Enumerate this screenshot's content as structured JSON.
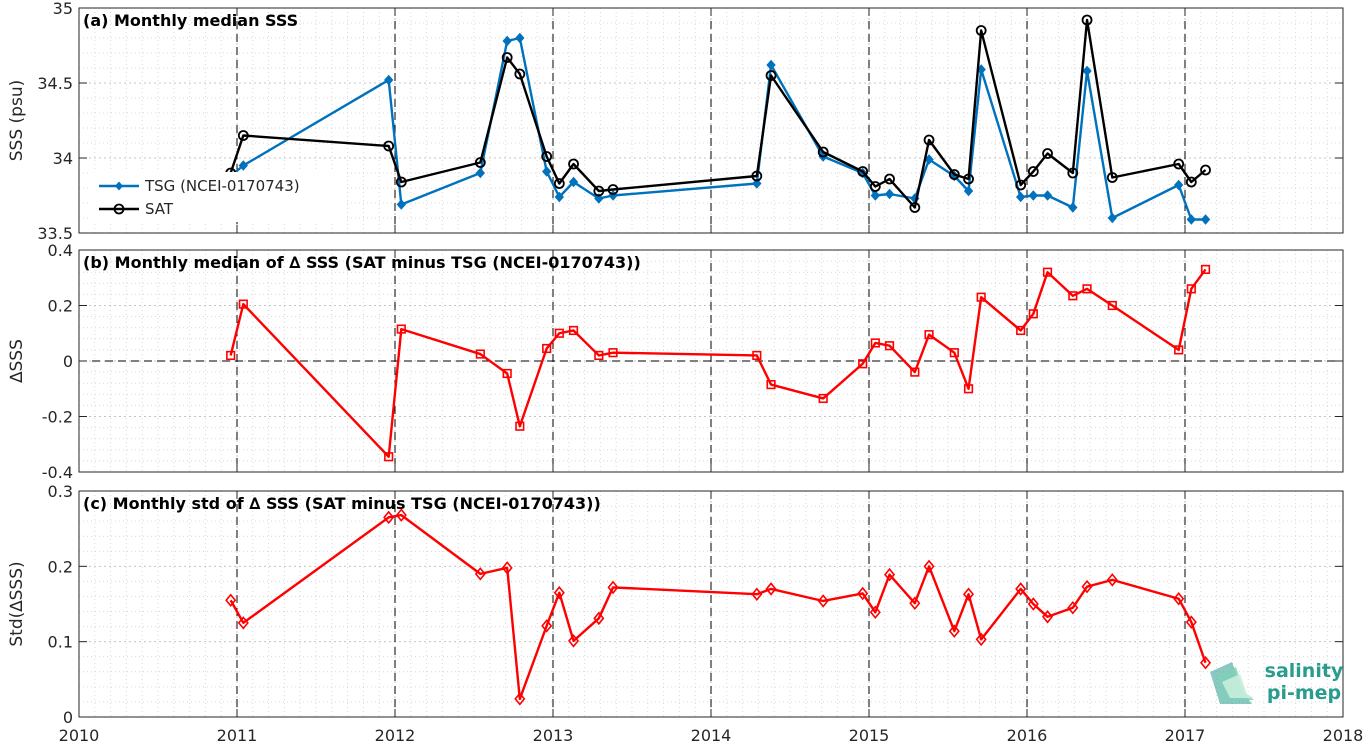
{
  "logo": {
    "line1": "salinity",
    "line2": "pi-mep"
  },
  "colors": {
    "tsg": "#0072BD",
    "sat": "#000000",
    "delta": "#FF0000",
    "grid": "#d9d9d9"
  },
  "x_ticks": [
    "2010",
    "2011",
    "2012",
    "2013",
    "2014",
    "2015",
    "2016",
    "2017",
    "2018"
  ],
  "chart_data": [
    {
      "type": "line",
      "title": "(a) Monthly median SSS",
      "ylabel": "SSS (psu)",
      "xlim": [
        2010,
        2018
      ],
      "ylim": [
        33.5,
        35
      ],
      "y_ticks": [
        "33.5",
        "34",
        "34.5",
        "35"
      ],
      "grid": true,
      "legend_position": "left",
      "series": [
        {
          "name": "TSG (NCEI-0170743)",
          "marker": "diamond-filled",
          "x": [
            2010.96,
            2011.04,
            2011.96,
            2012.04,
            2012.54,
            2012.71,
            2012.79,
            2012.96,
            2013.04,
            2013.13,
            2013.29,
            2013.38,
            2014.29,
            2014.38,
            2014.71,
            2014.96,
            2015.04,
            2015.13,
            2015.29,
            2015.38,
            2015.54,
            2015.63,
            2015.71,
            2015.96,
            2016.04,
            2016.13,
            2016.29,
            2016.38,
            2016.54,
            2016.96,
            2017.04,
            2017.13
          ],
          "y": [
            33.88,
            33.95,
            34.52,
            33.69,
            33.9,
            34.78,
            34.8,
            33.91,
            33.74,
            33.84,
            33.73,
            33.75,
            33.83,
            34.62,
            34.01,
            33.9,
            33.75,
            33.76,
            33.73,
            33.99,
            33.88,
            33.78,
            34.59,
            33.74,
            33.75,
            33.75,
            33.67,
            34.58,
            33.6,
            33.82,
            33.59,
            33.59
          ]
        },
        {
          "name": "SAT",
          "marker": "circle-open",
          "x": [
            2010.96,
            2011.04,
            2011.96,
            2012.04,
            2012.54,
            2012.71,
            2012.79,
            2012.96,
            2013.04,
            2013.13,
            2013.29,
            2013.38,
            2014.29,
            2014.38,
            2014.71,
            2014.96,
            2015.04,
            2015.13,
            2015.29,
            2015.38,
            2015.54,
            2015.63,
            2015.71,
            2015.96,
            2016.04,
            2016.13,
            2016.29,
            2016.38,
            2016.54,
            2016.96,
            2017.04,
            2017.13
          ],
          "y": [
            33.9,
            34.15,
            34.08,
            33.84,
            33.97,
            34.67,
            34.56,
            34.01,
            33.83,
            33.96,
            33.78,
            33.79,
            33.88,
            34.55,
            34.04,
            33.91,
            33.81,
            33.86,
            33.67,
            34.12,
            33.89,
            33.86,
            34.85,
            33.82,
            33.91,
            34.03,
            33.9,
            34.92,
            33.87,
            33.96,
            33.84,
            33.92
          ]
        }
      ]
    },
    {
      "type": "line",
      "title": "(b) Monthly median of ∆ SSS (SAT minus TSG (NCEI-0170743))",
      "ylabel": "∆SSS",
      "xlim": [
        2010,
        2018
      ],
      "ylim": [
        -0.4,
        0.4
      ],
      "y_ticks": [
        "-0.4",
        "-0.2",
        "0",
        "0.2",
        "0.4"
      ],
      "grid": true,
      "reference_line": 0,
      "series": [
        {
          "marker": "square-open",
          "x": [
            2010.96,
            2011.04,
            2011.96,
            2012.04,
            2012.54,
            2012.71,
            2012.79,
            2012.96,
            2013.04,
            2013.13,
            2013.29,
            2013.38,
            2014.29,
            2014.38,
            2014.71,
            2014.96,
            2015.04,
            2015.13,
            2015.29,
            2015.38,
            2015.54,
            2015.63,
            2015.71,
            2015.96,
            2016.04,
            2016.13,
            2016.29,
            2016.38,
            2016.54,
            2016.96,
            2017.04,
            2017.13
          ],
          "y": [
            0.02,
            0.205,
            -0.345,
            0.115,
            0.025,
            -0.045,
            -0.235,
            0.045,
            0.1,
            0.11,
            0.02,
            0.03,
            0.02,
            -0.085,
            -0.135,
            -0.01,
            0.065,
            0.055,
            -0.04,
            0.095,
            0.03,
            -0.1,
            0.23,
            0.11,
            0.17,
            0.32,
            0.235,
            0.26,
            0.2,
            0.04,
            0.26,
            0.33
          ]
        }
      ]
    },
    {
      "type": "line",
      "title": "(c) Monthly std of ∆ SSS (SAT minus TSG (NCEI-0170743))",
      "ylabel": "Std(∆SSS)",
      "xlim": [
        2010,
        2018
      ],
      "ylim": [
        0,
        0.3
      ],
      "y_ticks": [
        "0",
        "0.1",
        "0.2",
        "0.3"
      ],
      "grid": true,
      "series": [
        {
          "marker": "diamond-open",
          "x": [
            2010.96,
            2011.04,
            2011.96,
            2012.04,
            2012.54,
            2012.71,
            2012.79,
            2012.96,
            2013.04,
            2013.13,
            2013.29,
            2013.38,
            2014.29,
            2014.38,
            2014.71,
            2014.96,
            2015.04,
            2015.13,
            2015.29,
            2015.38,
            2015.54,
            2015.63,
            2015.71,
            2015.96,
            2016.04,
            2016.13,
            2016.29,
            2016.38,
            2016.54,
            2016.96,
            2017.04,
            2017.13
          ],
          "y": [
            0.155,
            0.125,
            0.265,
            0.268,
            0.19,
            0.198,
            0.024,
            0.121,
            0.165,
            0.101,
            0.131,
            0.172,
            0.163,
            0.17,
            0.154,
            0.164,
            0.139,
            0.189,
            0.151,
            0.2,
            0.114,
            0.163,
            0.103,
            0.17,
            0.15,
            0.133,
            0.145,
            0.173,
            0.182,
            0.157,
            0.126,
            0.072
          ]
        }
      ]
    }
  ]
}
